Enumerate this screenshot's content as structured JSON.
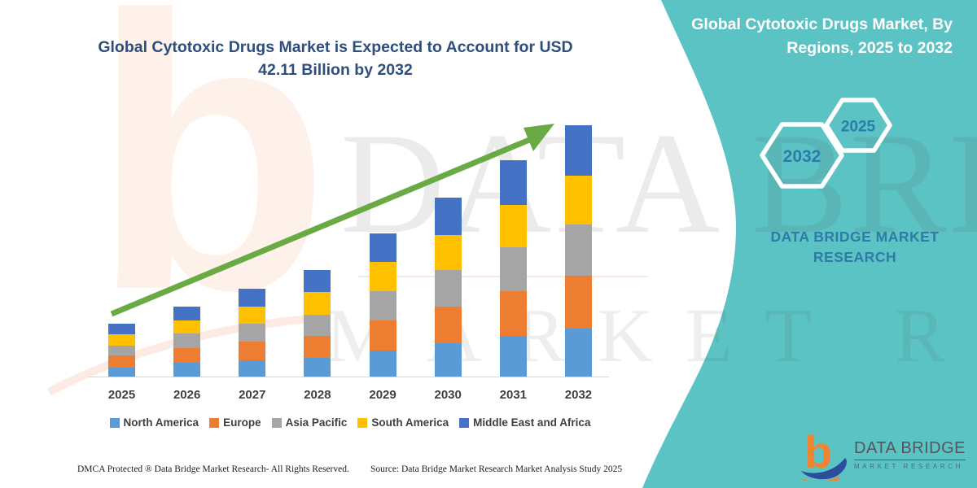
{
  "chart_title": {
    "line1": "Global Cytotoxic Drugs Market is Expected to Account for USD",
    "line2": "42.11 Billion by 2032"
  },
  "chart_data": {
    "type": "bar",
    "stacked": true,
    "title": "Global Cytotoxic Drugs Market is Expected to Account for USD 42.11 Billion by 2032",
    "unit": "USD Billion",
    "categories": [
      "2025",
      "2026",
      "2027",
      "2028",
      "2029",
      "2030",
      "2031",
      "2032"
    ],
    "series": [
      {
        "name": "North America",
        "color": "#5B9BD5",
        "values": [
          1.5,
          2.3,
          2.7,
          3.1,
          4.4,
          5.6,
          6.8,
          8.1
        ]
      },
      {
        "name": "Europe",
        "color": "#ED7D31",
        "values": [
          2.0,
          2.5,
          3.1,
          3.7,
          5.0,
          6.1,
          7.5,
          8.8
        ]
      },
      {
        "name": "Asia Pacific",
        "color": "#A5A5A5",
        "values": [
          1.7,
          2.4,
          3.0,
          3.5,
          4.9,
          6.1,
          7.4,
          8.6
        ]
      },
      {
        "name": "South America",
        "color": "#FFC000",
        "values": [
          1.9,
          2.2,
          2.9,
          3.8,
          4.9,
          5.9,
          7.1,
          8.1
        ]
      },
      {
        "name": "Middle East and Africa",
        "color": "#4472C4",
        "values": [
          1.7,
          2.3,
          3.0,
          3.7,
          4.8,
          6.3,
          7.4,
          8.5
        ]
      }
    ],
    "totals_estimated": [
      8.8,
      11.7,
      14.7,
      17.8,
      24.0,
      30.0,
      36.2,
      42.11
    ],
    "final_value_label": "USD 42.11 Billion by 2032",
    "legend_position": "bottom",
    "grid": false,
    "annotations": [
      "green growth trend arrow from 2025 toward 2032"
    ],
    "accent_colors": {
      "arrow_green": "#6aaa45",
      "panel_teal": "#5cc3c4",
      "title_blue": "#2e4e7e"
    }
  },
  "side_panel": {
    "title_line1": "Global Cytotoxic Drugs Market, By",
    "title_line2": "Regions, 2025 to 2032",
    "hexagon_left_year": "2032",
    "hexagon_right_year": "2025",
    "brand_line1": "DATA BRIDGE MARKET",
    "brand_line2": "RESEARCH"
  },
  "watermark": {
    "big_letter": "b",
    "line1": "DATA BRIDGE",
    "line2": "MARKET RESEARCH"
  },
  "footer": {
    "dmca": "DMCA Protected ® Data Bridge Market Research-  All Rights Reserved.",
    "source": "Source: Data Bridge Market Research  Market Analysis Study 2025"
  },
  "logo": {
    "glyph": "b",
    "title": "DATA BRIDGE",
    "subtitle": "MARKET RESEARCH"
  }
}
